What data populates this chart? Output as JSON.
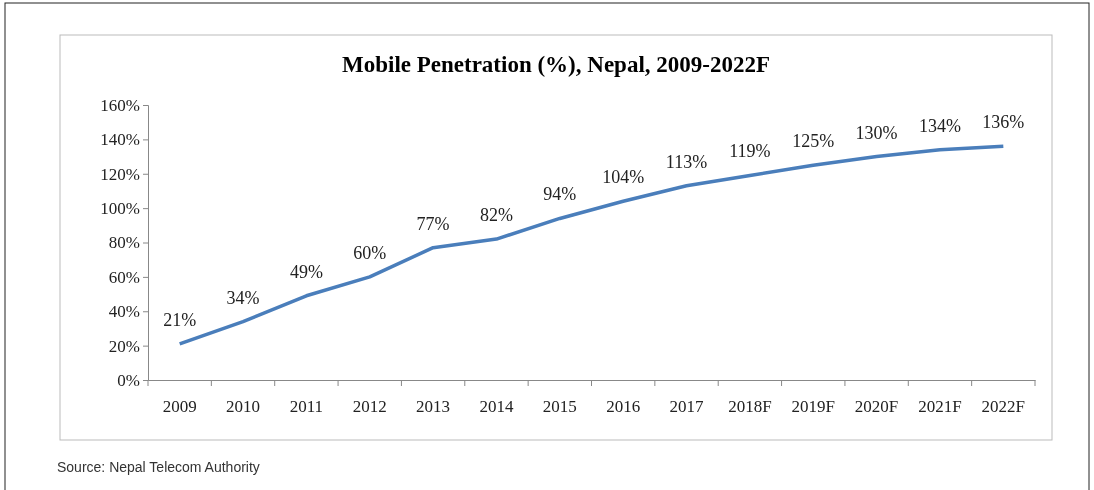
{
  "chart_data": {
    "type": "line",
    "title": "Mobile Penetration (%), Nepal, 2009-2022F",
    "categories": [
      "2009",
      "2010",
      "2011",
      "2012",
      "2013",
      "2014",
      "2015",
      "2016",
      "2017",
      "2018F",
      "2019F",
      "2020F",
      "2021F",
      "2022F"
    ],
    "series": [
      {
        "color": "#4a7ebb",
        "values": [
          21,
          34,
          49,
          60,
          77,
          82,
          94,
          104,
          113,
          119,
          125,
          130,
          134,
          136
        ],
        "value_labels": [
          "21%",
          "34%",
          "49%",
          "60%",
          "77%",
          "82%",
          "94%",
          "104%",
          "113%",
          "119%",
          "125%",
          "130%",
          "134%",
          "136%"
        ]
      }
    ],
    "ylim": [
      0,
      160
    ],
    "yticks": [
      {
        "value": 0,
        "label": "0%"
      },
      {
        "value": 20,
        "label": "20%"
      },
      {
        "value": 40,
        "label": "40%"
      },
      {
        "value": 60,
        "label": "60%"
      },
      {
        "value": 80,
        "label": "80%"
      },
      {
        "value": 100,
        "label": "100%"
      },
      {
        "value": 120,
        "label": "120%"
      },
      {
        "value": 140,
        "label": "140%"
      },
      {
        "value": 160,
        "label": "160%"
      }
    ],
    "grid": false,
    "marker": "none",
    "line_style": "solid",
    "annotations": [
      "Source: Nepal Telecom Authority"
    ]
  }
}
